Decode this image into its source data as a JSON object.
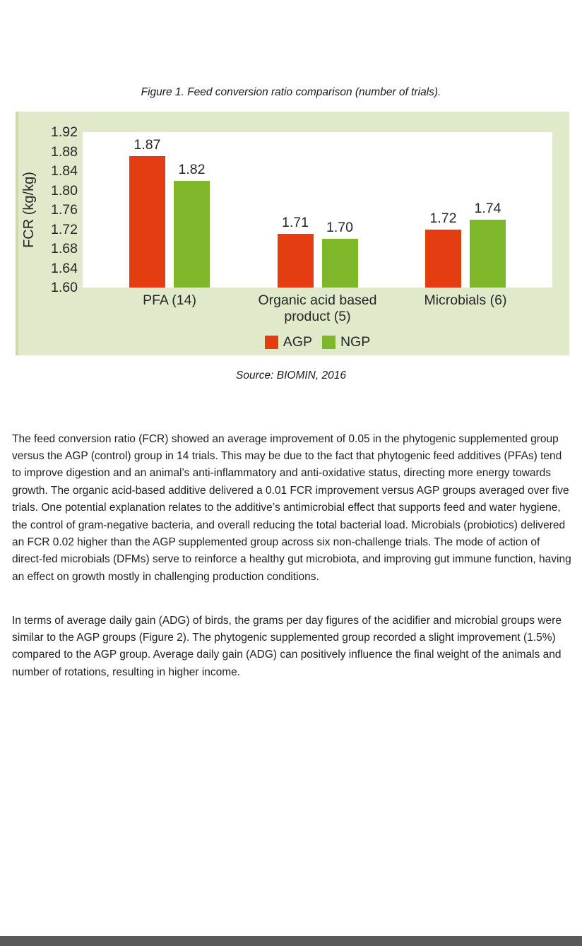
{
  "page": {
    "figure_caption": "Figure 1. Feed conversion ratio comparison (number of trials).",
    "source_line": "Source: BIOMIN, 2016",
    "paragraphs": [
      "The feed conversion ratio (FCR) showed an average improvement of 0.05 in the phytogenic supplemented group versus the AGP (control) group in 14 trials. This may be due to the fact that phytogenic feed additives (PFAs) tend to improve digestion and an animal’s anti-inflammatory and anti-oxidative status, directing more energy towards growth. The organic acid-based additive delivered a 0.01 FCR improvement versus AGP groups averaged over five trials. One potential explanation relates to the additive’s antimicrobial effect that supports feed and water hygiene, the control of gram-negative bacteria, and overall reducing the total bacterial load. Microbials (probiotics) delivered an FCR 0.02 higher than the AGP supplemented group across six non-challenge trials. The mode of action of direct-fed microbials (DFMs) serve to reinforce a healthy gut microbiota, and improving gut immune function, having an effect on growth mostly in challenging production conditions.",
      "In terms of average daily gain (ADG) of birds, the grams per day figures of the acidifier and microbial groups were similar to the AGP groups (Figure 2). The phytogenic supplemented group recorded a slight improvement (1.5%) compared to the AGP group. Average daily gain (ADG) can positively influence the final weight of the animals and number of rotations, resulting in higher income."
    ]
  },
  "colors": {
    "agp_red": "#e43d12",
    "ngp_green": "#7fb72b",
    "chart_panel_green": "#e0eaca",
    "footer_gray": "#58595b"
  },
  "chart_data": {
    "type": "bar",
    "title": "Figure 1. Feed conversion ratio comparison (number of trials).",
    "categories": [
      "PFA (14)",
      "Organic acid based\nproduct (5)",
      "Microbials (6)"
    ],
    "series": [
      {
        "name": "AGP",
        "color": "#e43d12",
        "values": [
          1.87,
          1.71,
          1.72
        ]
      },
      {
        "name": "NGP",
        "color": "#7fb72b",
        "values": [
          1.82,
          1.7,
          1.74
        ]
      }
    ],
    "ylabel": "FCR (kg/kg)",
    "xlabel": "",
    "ylim": [
      1.6,
      1.92
    ],
    "ytick_step": 0.04,
    "value_labels": true,
    "grid": false,
    "legend_position": "bottom-center",
    "source": "Source: BIOMIN, 2016"
  }
}
